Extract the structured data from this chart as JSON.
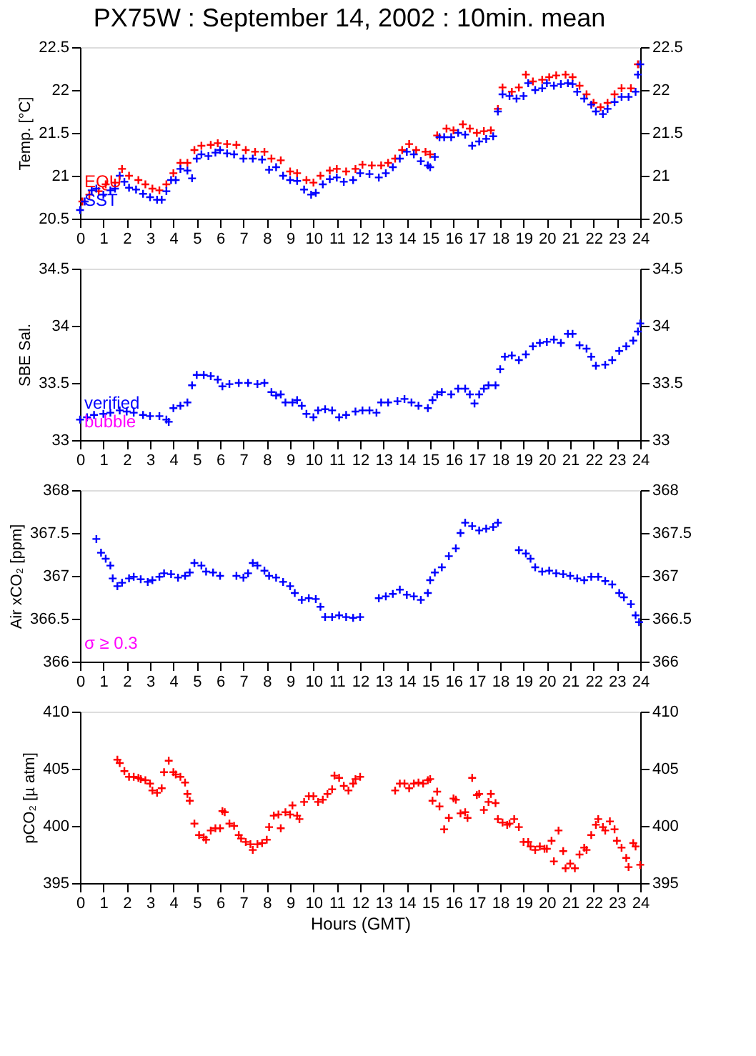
{
  "chart_data": [
    {
      "type": "scatter",
      "title": "PX75W : September 14, 2002 : 10min. mean",
      "ylabel": "Temp. [°C]",
      "xlim": [
        0,
        24
      ],
      "xticks": [
        0,
        1,
        2,
        3,
        4,
        5,
        6,
        7,
        8,
        9,
        10,
        11,
        12,
        13,
        14,
        15,
        16,
        17,
        18,
        19,
        20,
        21,
        22,
        23,
        24
      ],
      "ylim": [
        20.5,
        22.5
      ],
      "yticks": [
        20.5,
        21,
        21.5,
        22,
        22.5
      ],
      "y2lim": [
        20.5,
        22.5
      ],
      "y2ticks": [
        20.5,
        21,
        21.5,
        22,
        22.5
      ],
      "marker": "cross",
      "grid": false,
      "legend": "bottom left",
      "series": [
        {
          "name": "EQU",
          "color": "#ff0000",
          "x": [
            0.1,
            0.4,
            0.8,
            1.1,
            1.5,
            1.8,
            2.1,
            2.5,
            2.8,
            3.1,
            3.4,
            3.7,
            4.0,
            4.3,
            4.6,
            4.9,
            5.2,
            5.6,
            5.9,
            6.3,
            6.7,
            7.1,
            7.5,
            7.9,
            8.2,
            8.6,
            9.0,
            9.3,
            9.7,
            10.0,
            10.3,
            10.7,
            11.0,
            11.4,
            11.8,
            12.1,
            12.5,
            12.9,
            13.2,
            13.5,
            13.8,
            14.1,
            14.4,
            14.8,
            15.0,
            15.3,
            15.7,
            16.0,
            16.4,
            16.7,
            17.0,
            17.3,
            17.6,
            17.9,
            18.1,
            18.5,
            18.8,
            19.1,
            19.4,
            19.8,
            20.1,
            20.4,
            20.8,
            21.1,
            21.4,
            21.7,
            22.0,
            22.3,
            22.6,
            22.9,
            23.2,
            23.6,
            23.9
          ],
          "values": [
            20.7,
            20.78,
            20.82,
            20.9,
            20.92,
            21.08,
            21.0,
            20.95,
            20.9,
            20.85,
            20.83,
            20.9,
            21.03,
            21.15,
            21.15,
            21.3,
            21.35,
            21.36,
            21.38,
            21.37,
            21.36,
            21.3,
            21.28,
            21.28,
            21.2,
            21.18,
            21.05,
            21.03,
            20.95,
            20.92,
            21.0,
            21.06,
            21.08,
            21.05,
            21.08,
            21.13,
            21.12,
            21.12,
            21.15,
            21.2,
            21.3,
            21.37,
            21.3,
            21.28,
            21.25,
            21.47,
            21.55,
            21.53,
            21.6,
            21.55,
            21.5,
            21.52,
            21.53,
            21.78,
            22.03,
            21.98,
            22.03,
            22.18,
            22.1,
            22.12,
            22.15,
            22.17,
            22.18,
            22.15,
            22.05,
            21.95,
            21.85,
            21.8,
            21.85,
            21.95,
            22.02,
            22.02,
            22.3
          ]
        },
        {
          "name": "SST",
          "color": "#0000ff",
          "x": [
            0.0,
            0.2,
            0.5,
            0.7,
            1.0,
            1.3,
            1.5,
            1.7,
            1.9,
            2.1,
            2.4,
            2.7,
            3.0,
            3.3,
            3.5,
            3.7,
            3.9,
            4.1,
            4.3,
            4.6,
            4.8,
            5.0,
            5.2,
            5.5,
            5.8,
            6.0,
            6.3,
            6.6,
            7.0,
            7.4,
            7.8,
            8.1,
            8.4,
            8.7,
            9.0,
            9.3,
            9.6,
            9.9,
            10.1,
            10.4,
            10.7,
            11.0,
            11.3,
            11.7,
            12.0,
            12.4,
            12.8,
            13.1,
            13.4,
            13.7,
            14.0,
            14.3,
            14.6,
            14.9,
            15.0,
            15.2,
            15.4,
            15.6,
            15.9,
            16.2,
            16.5,
            16.8,
            17.1,
            17.4,
            17.7,
            17.9,
            18.1,
            18.4,
            18.7,
            19.0,
            19.2,
            19.5,
            19.8,
            20.0,
            20.3,
            20.6,
            20.9,
            21.1,
            21.3,
            21.6,
            21.9,
            22.1,
            22.4,
            22.6,
            22.9,
            23.2,
            23.5,
            23.8,
            23.9,
            24.0
          ],
          "values": [
            20.6,
            20.7,
            20.83,
            20.85,
            20.78,
            20.83,
            20.85,
            21.0,
            20.93,
            20.86,
            20.84,
            20.79,
            20.75,
            20.72,
            20.72,
            20.82,
            20.95,
            20.95,
            21.08,
            21.06,
            20.97,
            21.2,
            21.25,
            21.23,
            21.27,
            21.3,
            21.26,
            21.25,
            21.2,
            21.2,
            21.19,
            21.07,
            21.1,
            21.0,
            20.95,
            20.94,
            20.84,
            20.78,
            20.8,
            20.9,
            20.96,
            20.98,
            20.93,
            20.95,
            21.03,
            21.02,
            20.98,
            21.03,
            21.1,
            21.2,
            21.28,
            21.25,
            21.17,
            21.12,
            21.1,
            21.22,
            21.45,
            21.45,
            21.45,
            21.5,
            21.48,
            21.35,
            21.4,
            21.43,
            21.46,
            21.75,
            21.95,
            21.93,
            21.9,
            21.93,
            22.08,
            22.0,
            22.02,
            22.08,
            22.05,
            22.07,
            22.08,
            22.07,
            21.98,
            21.9,
            21.83,
            21.75,
            21.72,
            21.78,
            21.86,
            21.92,
            21.92,
            21.98,
            22.18,
            22.3
          ]
        }
      ]
    },
    {
      "type": "scatter",
      "ylabel": "SBE Sal.",
      "xlim": [
        0,
        24
      ],
      "xticks": [
        0,
        1,
        2,
        3,
        4,
        5,
        6,
        7,
        8,
        9,
        10,
        11,
        12,
        13,
        14,
        15,
        16,
        17,
        18,
        19,
        20,
        21,
        22,
        23,
        24
      ],
      "ylim": [
        33,
        34.5
      ],
      "yticks": [
        33,
        33.5,
        34,
        34.5
      ],
      "y2lim": [
        33,
        34.5
      ],
      "y2ticks": [
        33,
        33.5,
        34,
        34.5
      ],
      "marker": "cross",
      "grid": false,
      "legend": "bottom left",
      "series": [
        {
          "name": "verified",
          "color": "#0000ff",
          "x": [
            0.0,
            0.3,
            0.6,
            1.0,
            1.3,
            1.7,
            2.0,
            2.3,
            2.7,
            3.0,
            3.4,
            3.7,
            3.8,
            4.0,
            4.3,
            4.6,
            4.8,
            5.0,
            5.3,
            5.6,
            5.9,
            6.1,
            6.4,
            6.8,
            7.2,
            7.6,
            7.9,
            8.2,
            8.4,
            8.6,
            8.8,
            9.1,
            9.3,
            9.5,
            9.7,
            10.0,
            10.2,
            10.5,
            10.8,
            11.1,
            11.4,
            11.8,
            12.1,
            12.4,
            12.7,
            12.9,
            13.2,
            13.6,
            13.9,
            14.2,
            14.5,
            14.9,
            15.1,
            15.3,
            15.5,
            15.9,
            16.2,
            16.5,
            16.7,
            16.9,
            17.1,
            17.3,
            17.5,
            17.8,
            18.0,
            18.2,
            18.5,
            18.8,
            19.1,
            19.4,
            19.7,
            20.0,
            20.3,
            20.6,
            20.9,
            21.1,
            21.4,
            21.7,
            21.9,
            22.1,
            22.5,
            22.8,
            23.1,
            23.4,
            23.7,
            23.9,
            24.0
          ],
          "values": [
            33.18,
            33.2,
            33.22,
            33.23,
            33.24,
            33.26,
            33.25,
            33.24,
            33.22,
            33.21,
            33.21,
            33.18,
            33.16,
            33.28,
            33.3,
            33.33,
            33.48,
            33.57,
            33.57,
            33.56,
            33.53,
            33.47,
            33.49,
            33.5,
            33.5,
            33.49,
            33.5,
            33.42,
            33.39,
            33.4,
            33.33,
            33.33,
            33.35,
            33.3,
            33.23,
            33.2,
            33.26,
            33.27,
            33.26,
            33.2,
            33.22,
            33.25,
            33.26,
            33.26,
            33.24,
            33.33,
            33.33,
            33.34,
            33.36,
            33.33,
            33.3,
            33.28,
            33.35,
            33.4,
            33.42,
            33.4,
            33.45,
            33.45,
            33.4,
            33.32,
            33.4,
            33.45,
            33.48,
            33.48,
            33.62,
            33.73,
            33.74,
            33.7,
            33.75,
            33.82,
            33.85,
            33.86,
            33.88,
            33.85,
            33.93,
            33.93,
            33.83,
            33.8,
            33.73,
            33.65,
            33.66,
            33.7,
            33.78,
            33.82,
            33.87,
            33.95,
            34.02
          ]
        },
        {
          "name": "bubble",
          "color": "#ff00ff"
        }
      ]
    },
    {
      "type": "scatter",
      "ylabel": "Air xCO₂ [ppm]",
      "xlim": [
        0,
        24
      ],
      "xticks": [
        0,
        1,
        2,
        3,
        4,
        5,
        6,
        7,
        8,
        9,
        10,
        11,
        12,
        13,
        14,
        15,
        16,
        17,
        18,
        19,
        20,
        21,
        22,
        23,
        24
      ],
      "ylim": [
        366,
        368
      ],
      "yticks": [
        366,
        366.5,
        367,
        367.5,
        368
      ],
      "y2lim": [
        366,
        368
      ],
      "y2ticks": [
        366,
        366.5,
        367,
        367.5,
        368
      ],
      "marker": "cross",
      "grid": false,
      "annotations": [
        "σ ≥ 0.3"
      ],
      "series": [
        {
          "color": "#0000ff",
          "x": [
            0.7,
            0.9,
            1.1,
            1.3,
            1.4,
            1.6,
            1.8,
            2.1,
            2.3,
            2.6,
            2.9,
            3.1,
            3.4,
            3.6,
            3.9,
            4.2,
            4.5,
            4.7,
            4.9,
            5.2,
            5.4,
            5.7,
            6.0,
            6.7,
            7.0,
            7.2,
            7.4,
            7.6,
            7.9,
            8.1,
            8.4,
            8.7,
            9.0,
            9.2,
            9.5,
            9.8,
            10.1,
            10.3,
            10.5,
            10.8,
            11.1,
            11.4,
            11.7,
            12.0,
            12.8,
            13.1,
            13.4,
            13.7,
            14.0,
            14.3,
            14.6,
            14.9,
            15.0,
            15.2,
            15.5,
            15.8,
            16.1,
            16.3,
            16.5,
            16.8,
            17.1,
            17.4,
            17.7,
            17.9,
            18.8,
            19.1,
            19.3,
            19.5,
            19.8,
            20.1,
            20.4,
            20.7,
            21.0,
            21.3,
            21.6,
            21.9,
            22.2,
            22.5,
            22.8,
            23.1,
            23.3,
            23.6,
            23.8,
            23.95
          ],
          "values": [
            367.43,
            367.27,
            367.2,
            367.12,
            366.97,
            366.88,
            366.92,
            366.97,
            366.99,
            366.96,
            366.93,
            366.95,
            366.99,
            367.03,
            367.02,
            366.98,
            367.0,
            367.04,
            367.15,
            367.12,
            367.05,
            367.04,
            367.0,
            367.0,
            366.98,
            367.03,
            367.15,
            367.12,
            367.06,
            367.0,
            366.98,
            366.93,
            366.88,
            366.8,
            366.72,
            366.74,
            366.73,
            366.64,
            366.52,
            366.52,
            366.54,
            366.52,
            366.51,
            366.52,
            366.74,
            366.76,
            366.79,
            366.84,
            366.78,
            366.76,
            366.72,
            366.8,
            366.95,
            367.04,
            367.1,
            367.23,
            367.32,
            367.5,
            367.62,
            367.58,
            367.53,
            367.55,
            367.57,
            367.62,
            367.3,
            367.26,
            367.2,
            367.1,
            367.05,
            367.06,
            367.03,
            367.02,
            367.0,
            366.97,
            366.95,
            366.99,
            366.99,
            366.94,
            366.9,
            366.8,
            366.75,
            366.67,
            366.54,
            366.46
          ]
        }
      ]
    },
    {
      "type": "scatter",
      "ylabel": "pCO₂ [µ atm]",
      "xlabel": "Hours (GMT)",
      "xlim": [
        0,
        24
      ],
      "xticks": [
        0,
        1,
        2,
        3,
        4,
        5,
        6,
        7,
        8,
        9,
        10,
        11,
        12,
        13,
        14,
        15,
        16,
        17,
        18,
        19,
        20,
        21,
        22,
        23,
        24
      ],
      "ylim": [
        395,
        410
      ],
      "yticks": [
        395,
        400,
        405,
        410
      ],
      "y2lim": [
        395,
        410
      ],
      "y2ticks": [
        395,
        400,
        405,
        410
      ],
      "marker": "cross",
      "grid": false,
      "series": [
        {
          "color": "#ff0000",
          "x": [
            1.6,
            1.7,
            1.9,
            2.1,
            2.3,
            2.5,
            2.6,
            2.8,
            3.0,
            3.1,
            3.3,
            3.5,
            3.6,
            3.8,
            4.0,
            4.1,
            4.3,
            4.5,
            4.6,
            4.7,
            4.9,
            5.1,
            5.3,
            5.4,
            5.6,
            5.8,
            6.0,
            6.1,
            6.2,
            6.4,
            6.6,
            6.8,
            6.9,
            7.1,
            7.3,
            7.4,
            7.6,
            7.8,
            8.0,
            8.1,
            8.3,
            8.5,
            8.6,
            8.8,
            9.0,
            9.1,
            9.3,
            9.4,
            9.6,
            9.8,
            10.0,
            10.2,
            10.4,
            10.6,
            10.8,
            10.9,
            11.1,
            11.3,
            11.5,
            11.7,
            11.8,
            12.0,
            13.5,
            13.7,
            13.9,
            14.1,
            14.3,
            14.5,
            14.7,
            14.9,
            15.0,
            15.1,
            15.3,
            15.4,
            15.6,
            15.8,
            16.0,
            16.1,
            16.3,
            16.5,
            16.6,
            16.8,
            17.0,
            17.1,
            17.3,
            17.5,
            17.6,
            17.8,
            17.9,
            18.1,
            18.3,
            18.4,
            18.6,
            18.8,
            19.0,
            19.2,
            19.3,
            19.5,
            19.7,
            19.9,
            20.0,
            20.2,
            20.3,
            20.5,
            20.7,
            20.8,
            21.0,
            21.2,
            21.4,
            21.6,
            21.7,
            21.9,
            22.1,
            22.2,
            22.4,
            22.5,
            22.7,
            22.9,
            23.0,
            23.2,
            23.4,
            23.5,
            23.7,
            23.8,
            24.0
          ],
          "values": [
            405.8,
            405.5,
            404.8,
            404.3,
            404.3,
            404.2,
            404.1,
            404.0,
            403.7,
            403.1,
            402.9,
            403.3,
            404.7,
            405.7,
            404.7,
            404.5,
            404.3,
            403.8,
            402.8,
            402.2,
            400.2,
            399.2,
            399.0,
            398.8,
            399.6,
            399.8,
            399.8,
            401.3,
            401.2,
            400.2,
            400.0,
            399.2,
            398.9,
            398.6,
            398.4,
            397.9,
            398.4,
            398.5,
            398.8,
            399.9,
            400.9,
            401.0,
            399.8,
            401.2,
            401.0,
            401.8,
            400.9,
            400.6,
            402.1,
            402.6,
            402.6,
            402.1,
            402.3,
            402.8,
            403.2,
            404.4,
            404.2,
            403.5,
            403.1,
            403.7,
            404.1,
            404.3,
            403.1,
            403.7,
            403.7,
            403.3,
            403.7,
            403.8,
            403.7,
            404.0,
            404.1,
            402.2,
            403.0,
            401.7,
            399.7,
            400.7,
            402.4,
            402.3,
            401.1,
            401.2,
            400.7,
            404.2,
            402.7,
            402.8,
            401.4,
            402.1,
            402.8,
            402.0,
            400.6,
            400.3,
            400.1,
            400.2,
            400.6,
            399.9,
            398.6,
            398.6,
            398.2,
            397.9,
            398.2,
            398.0,
            398.0,
            398.7,
            396.9,
            399.6,
            397.8,
            396.3,
            396.7,
            396.3,
            397.5,
            398.1,
            397.9,
            399.2,
            400.1,
            400.6,
            399.9,
            399.6,
            400.4,
            399.7,
            398.7,
            398.1,
            397.2,
            396.4,
            398.5,
            398.2,
            396.6
          ]
        }
      ]
    }
  ]
}
